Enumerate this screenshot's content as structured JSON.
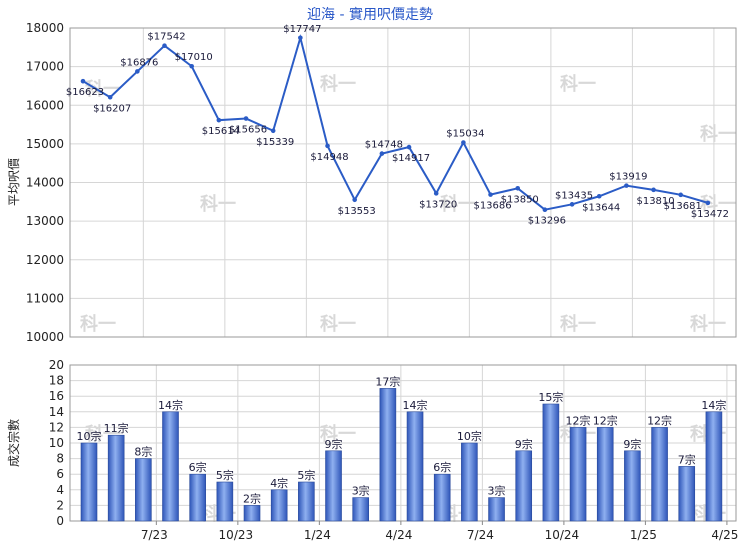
{
  "chart_data": [
    {
      "type": "line",
      "title": "迎海 - 實用呎價走勢",
      "ylabel": "平均呎價",
      "ylim": [
        10000,
        18000
      ],
      "yticks": [
        10000,
        11000,
        12000,
        13000,
        14000,
        15000,
        16000,
        17000,
        18000
      ],
      "grid": true,
      "legend": "none",
      "point_count": 24,
      "values": [
        16623,
        16207,
        16876,
        17542,
        17010,
        15614,
        15656,
        15339,
        17747,
        14948,
        13553,
        14748,
        14917,
        13720,
        15034,
        13686,
        13850,
        13296,
        13435,
        13644,
        13919,
        13810,
        13681,
        13472
      ],
      "labels": [
        "$16623",
        "$16207",
        "$16876",
        "$17542",
        "$17010",
        "$15614",
        "$15656",
        "$15339",
        "$17747",
        "$14948",
        "$13553",
        "$14748",
        "$14917",
        "$13720",
        "$15034",
        "$13686",
        "$13850",
        "$13296",
        "$13435",
        "$13644",
        "$13919",
        "$13810",
        "$13681",
        "$13472"
      ],
      "line_color": "#2b5cc6"
    },
    {
      "type": "bar",
      "ylabel": "成交宗數",
      "ylim": [
        0,
        20
      ],
      "yticks": [
        0,
        2,
        4,
        6,
        8,
        10,
        12,
        14,
        16,
        18,
        20
      ],
      "grid": true,
      "legend": "none",
      "xticks": [
        "7/23",
        "10/23",
        "1/24",
        "4/24",
        "7/24",
        "10/24",
        "1/25",
        "4/25"
      ],
      "values": [
        10,
        11,
        8,
        14,
        6,
        5,
        2,
        4,
        5,
        9,
        3,
        17,
        14,
        6,
        10,
        3,
        9,
        15,
        12,
        12,
        9,
        12,
        7,
        14
      ],
      "labels": [
        "10宗",
        "11宗",
        "8宗",
        "14宗",
        "6宗",
        "5宗",
        "2宗",
        "4宗",
        "5宗",
        "9宗",
        "3宗",
        "17宗",
        "14宗",
        "6宗",
        "10宗",
        "3宗",
        "9宗",
        "15宗",
        "12宗",
        "12宗",
        "9宗",
        "12宗",
        "7宗",
        "14宗"
      ],
      "bar_color": "#4a78d8"
    }
  ],
  "watermark": "科一"
}
